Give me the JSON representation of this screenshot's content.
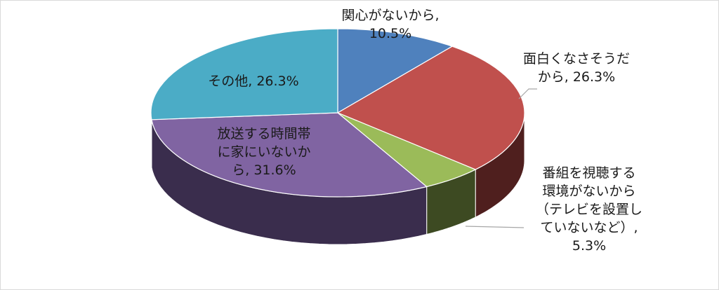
{
  "chart_data": {
    "type": "pie",
    "three_d": true,
    "legend": "none",
    "start_angle_deg": 0,
    "direction": "clockwise",
    "slices": [
      {
        "label": "関心がないから",
        "text": "関心がないから,\n10.5%",
        "value": 10.5,
        "color": "#4F81BD",
        "side": "#2c4a70"
      },
      {
        "label": "面白くなさそうだから",
        "text": "面白くなさそうだ\nから, 26.3%",
        "value": 26.3,
        "color": "#C0504D",
        "side": "#4f1f1e"
      },
      {
        "label": "番組を視聴する環境がないから（テレビを設置していないなど）",
        "text": "番組を視聴する\n環境がないから\n（テレビを設置し\nていないなど）,\n5.3%",
        "value": 5.3,
        "color": "#9BBB59",
        "side": "#3d4a22"
      },
      {
        "label": "放送する時間帯に家にいないから",
        "text": "放送する時間帯\nに家にいないか\nら, 31.6%",
        "value": 31.6,
        "color": "#8064A2",
        "side": "#3a2d4d"
      },
      {
        "label": "その他",
        "text": "その他, 26.3%",
        "value": 26.3,
        "color": "#4BACC6",
        "side": "#2a6a7a"
      }
    ]
  }
}
